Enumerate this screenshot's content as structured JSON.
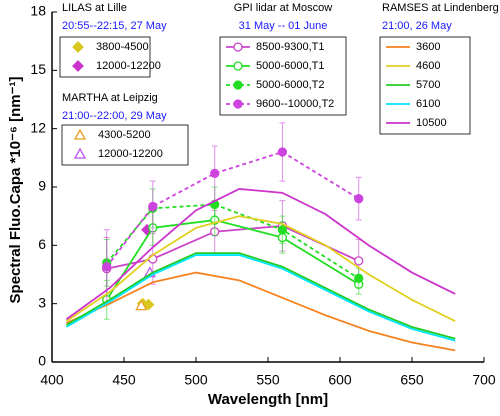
{
  "chart_data": {
    "type": "line",
    "xlabel": "Wavelength [nm]",
    "ylabel": "Spectral Fluo.Capa *10⁻⁶ [nm⁻¹]",
    "xlim": [
      400,
      700
    ],
    "xticks": [
      400,
      450,
      500,
      550,
      600,
      650,
      700
    ],
    "ylim": [
      0,
      18
    ],
    "yticks": [
      0,
      3,
      6,
      9,
      12,
      15,
      18
    ],
    "grid": false,
    "groups": [
      {
        "title": "LILAS at Lille",
        "subtitle": "20:55--22:15, 27 May",
        "series": [
          {
            "name": "3800-4500",
            "color": "#d8c81e",
            "marker": "diamond",
            "filled": true,
            "line": false,
            "x": [
              463,
              467
            ],
            "values": [
              3.0,
              2.95
            ]
          },
          {
            "name": "12000-12200",
            "color": "#cc33cc",
            "marker": "diamond",
            "filled": true,
            "line": false,
            "x": [
              466
            ],
            "values": [
              6.8
            ]
          }
        ]
      },
      {
        "title": "MARTHA at Leipzig",
        "subtitle": "21:00--22:00, 29 May",
        "series": [
          {
            "name": "4300-5200",
            "color": "#e8a020",
            "marker": "triangle",
            "filled": false,
            "line": false,
            "x": [
              462
            ],
            "values": [
              2.9
            ]
          },
          {
            "name": "12000-12200",
            "color": "#bb55ee",
            "marker": "triangle",
            "filled": false,
            "line": false,
            "x": [
              468
            ],
            "values": [
              4.6
            ]
          }
        ]
      },
      {
        "title": "GPI lidar at Moscow",
        "subtitle": "31 May -- 01 June",
        "series": [
          {
            "name": "8500-9300,T1",
            "color": "#cc44cc",
            "marker": "circle",
            "filled": false,
            "line": true,
            "dashed": false,
            "x": [
              438,
              470,
              513,
              560,
              613
            ],
            "values": [
              4.8,
              5.3,
              6.7,
              7.0,
              5.2
            ],
            "errors": [
              1.6,
              1.3,
              1.1,
              1.3,
              1.1
            ]
          },
          {
            "name": "5000-6000,T1",
            "color": "#22dd22",
            "marker": "circle",
            "filled": false,
            "line": true,
            "dashed": false,
            "x": [
              438,
              470,
              513,
              560,
              613
            ],
            "values": [
              3.2,
              6.9,
              7.3,
              6.4,
              4.0
            ],
            "errors": [
              1.0,
              0.9,
              0.8,
              0.8,
              0.5
            ]
          },
          {
            "name": "5000-6000,T2",
            "color": "#22dd22",
            "marker": "circle",
            "filled": true,
            "line": true,
            "dashed": true,
            "x": [
              438,
              470,
              513,
              560,
              613
            ],
            "values": [
              5.1,
              7.9,
              8.1,
              6.8,
              4.3
            ],
            "errors": [
              1.2,
              1.0,
              0.9,
              0.7,
              0.5
            ]
          },
          {
            "name": "9600--10000,T2",
            "color": "#cc44dd",
            "marker": "circle",
            "filled": true,
            "line": true,
            "dashed": true,
            "x": [
              438,
              470,
              513,
              560,
              613
            ],
            "values": [
              4.9,
              8.0,
              9.7,
              10.8,
              8.4
            ],
            "errors": [
              1.9,
              1.3,
              1.4,
              1.5,
              1.1
            ]
          }
        ]
      },
      {
        "title": "RAMSES at Lindenberg",
        "subtitle": "21:00, 26 May",
        "series": [
          {
            "name": "3600",
            "color": "#f58220",
            "marker": "none",
            "line": true,
            "x": [
              410,
              440,
              470,
              500,
              530,
              560,
              590,
              620,
              650,
              680
            ],
            "values": [
              2.0,
              3.0,
              4.1,
              4.6,
              4.2,
              3.3,
              2.4,
              1.6,
              1.0,
              0.6
            ]
          },
          {
            "name": "4600",
            "color": "#e0d020",
            "marker": "none",
            "line": true,
            "x": [
              410,
              440,
              470,
              500,
              530,
              560,
              590,
              620,
              650,
              680
            ],
            "values": [
              2.1,
              3.6,
              5.5,
              6.9,
              7.5,
              7.1,
              6.0,
              4.5,
              3.2,
              2.1
            ]
          },
          {
            "name": "5700",
            "color": "#22cc22",
            "marker": "none",
            "line": true,
            "x": [
              410,
              440,
              470,
              500,
              530,
              560,
              590,
              620,
              650,
              680
            ],
            "values": [
              1.9,
              3.2,
              4.6,
              5.6,
              5.6,
              4.9,
              3.8,
              2.7,
              1.8,
              1.2
            ]
          },
          {
            "name": "6100",
            "color": "#00e5ff",
            "marker": "none",
            "line": true,
            "x": [
              410,
              440,
              470,
              500,
              530,
              560,
              590,
              620,
              650,
              680
            ],
            "values": [
              1.8,
              3.1,
              4.5,
              5.5,
              5.5,
              4.8,
              3.7,
              2.6,
              1.7,
              1.1
            ]
          },
          {
            "name": "10500",
            "color": "#cc33cc",
            "marker": "none",
            "line": true,
            "x": [
              410,
              440,
              470,
              500,
              530,
              560,
              590,
              620,
              650,
              680
            ],
            "values": [
              2.2,
              3.8,
              5.9,
              7.8,
              8.9,
              8.7,
              7.6,
              6.0,
              4.6,
              3.5
            ]
          }
        ]
      }
    ]
  }
}
